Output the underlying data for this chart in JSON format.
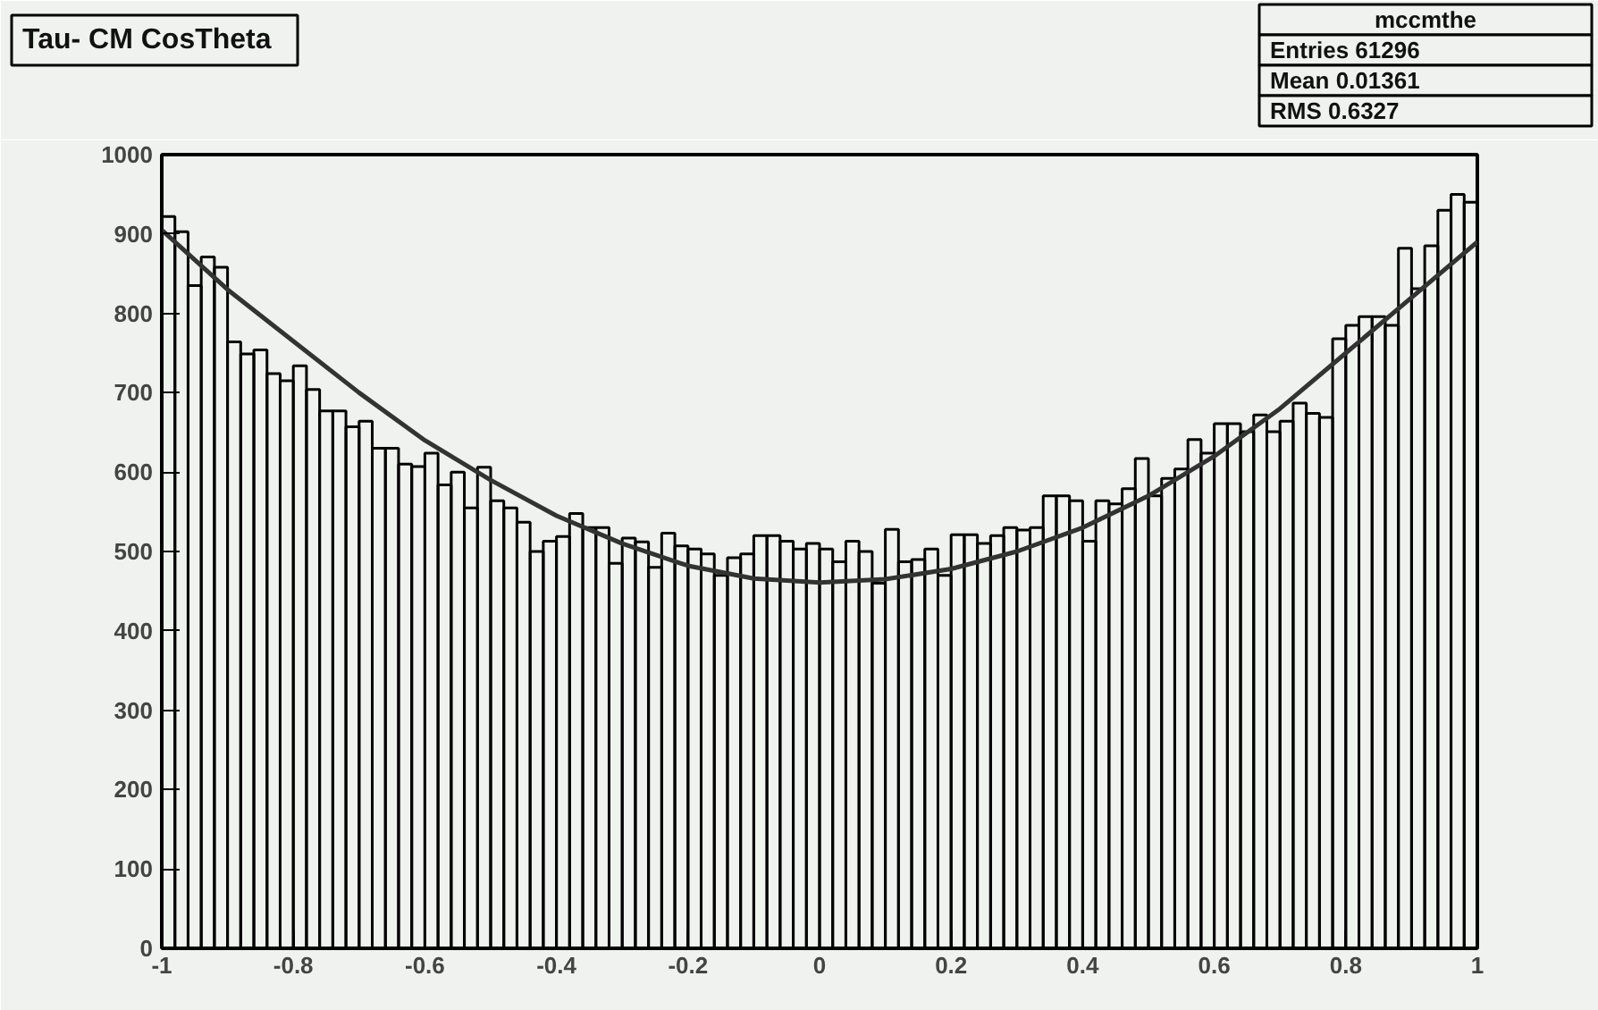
{
  "chart_data": {
    "type": "histogram",
    "title": "Tau- CM CosTheta",
    "bins": [
      -1.0,
      -0.98,
      -0.96,
      -0.94,
      -0.92,
      -0.9,
      -0.88,
      -0.86,
      -0.84,
      -0.82,
      -0.8,
      -0.78,
      -0.76,
      -0.74,
      -0.72,
      -0.7,
      -0.68,
      -0.66,
      -0.64,
      -0.62,
      -0.6,
      -0.58,
      -0.56,
      -0.54,
      -0.52,
      -0.5,
      -0.48,
      -0.46,
      -0.44,
      -0.42,
      -0.4,
      -0.38,
      -0.36,
      -0.34,
      -0.32,
      -0.3,
      -0.28,
      -0.26,
      -0.24,
      -0.22,
      -0.2,
      -0.18,
      -0.16,
      -0.14,
      -0.12,
      -0.1,
      -0.08,
      -0.06,
      -0.04,
      -0.02,
      0.0,
      0.02,
      0.04,
      0.06,
      0.08,
      0.1,
      0.12,
      0.14,
      0.16,
      0.18,
      0.2,
      0.22,
      0.24,
      0.26,
      0.28,
      0.3,
      0.32,
      0.34,
      0.36,
      0.38,
      0.4,
      0.42,
      0.44,
      0.46,
      0.48,
      0.5,
      0.52,
      0.54,
      0.56,
      0.58,
      0.6,
      0.62,
      0.64,
      0.66,
      0.68,
      0.7,
      0.72,
      0.74,
      0.76,
      0.78,
      0.8,
      0.82,
      0.84,
      0.86,
      0.88,
      0.9,
      0.92,
      0.94,
      0.96,
      0.98,
      1.0
    ],
    "values": [
      922,
      903,
      835,
      871,
      858,
      764,
      749,
      754,
      724,
      715,
      734,
      704,
      677,
      677,
      657,
      664,
      630,
      630,
      610,
      607,
      624,
      584,
      600,
      555,
      606,
      564,
      555,
      537,
      500,
      513,
      519,
      548,
      530,
      530,
      485,
      517,
      512,
      480,
      523,
      507,
      503,
      497,
      470,
      492,
      497,
      520,
      520,
      513,
      503,
      510,
      503,
      487,
      513,
      500,
      460,
      528,
      487,
      490,
      503,
      470,
      521,
      521,
      510,
      520,
      530,
      527,
      530,
      570,
      570,
      564,
      513,
      564,
      560,
      579,
      617,
      570,
      592,
      604,
      641,
      624,
      661,
      661,
      651,
      672,
      651,
      664,
      687,
      674,
      669,
      768,
      785,
      796,
      796,
      785,
      882,
      831,
      885,
      930,
      950,
      940
    ],
    "color": "#000000",
    "series": [
      {
        "type": "line",
        "color": "#333333",
        "x": [
          -1.0,
          -0.9,
          -0.8,
          -0.7,
          -0.6,
          -0.5,
          -0.4,
          -0.3,
          -0.2,
          -0.1,
          0.0,
          0.1,
          0.2,
          0.3,
          0.4,
          0.5,
          0.6,
          0.7,
          0.8,
          0.9,
          1.0
        ],
        "values": [
          905,
          830,
          765,
          700,
          640,
          590,
          545,
          510,
          482,
          466,
          461,
          465,
          478,
          500,
          530,
          570,
          620,
          680,
          750,
          820,
          890
        ]
      }
    ],
    "xlim": [
      -1,
      1
    ],
    "ylim": [
      0,
      1000
    ],
    "xticks": [
      -1,
      -0.8,
      -0.6,
      -0.4,
      -0.2,
      0,
      0.2,
      0.4,
      0.6,
      0.8,
      1
    ],
    "yticks": [
      0,
      100,
      200,
      300,
      400,
      500,
      600,
      700,
      800,
      900,
      1000
    ],
    "grid": false,
    "annotations": [
      "mccmthe",
      "Entries 61296",
      "Mean 0.01361",
      "RMS 0.6327"
    ]
  }
}
